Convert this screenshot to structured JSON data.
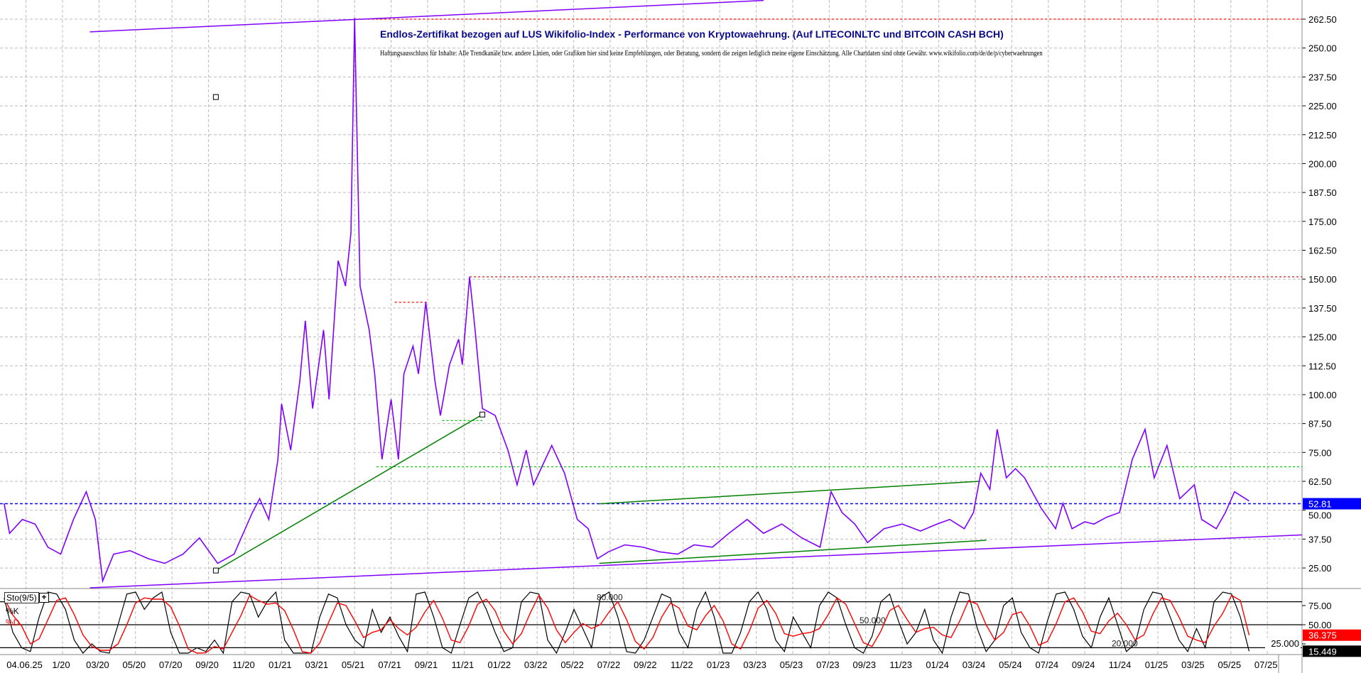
{
  "chart_data": {
    "type": "line",
    "title": "Endlos-Zertifikat bezogen auf LUS Wikifolio-Index - Performance von Kryptowaehrung. (Auf LITECOINLTC und BITCOIN CASH BCH)",
    "subtitle": "Haftungsausschluss für Inhalte: Alle Trendkanäle bzw. andere Linien, oder Grafiken hier sind keine Empfehlungen, oder Beratung, sondern die zeigen lediglich meine eigene Einschätzung. Alle Chartdaten sind ohne Gewähr. www.wikifolio.com/de/de/p/cyberwaehrungen",
    "x_unit": "months since 01/2020",
    "x_tick_labels": [
      "04.06.25",
      "1/20",
      "03/20",
      "05/20",
      "07/20",
      "09/20",
      "11/20",
      "01/21",
      "03/21",
      "05/21",
      "07/21",
      "09/21",
      "11/21",
      "01/22",
      "03/22",
      "05/22",
      "07/22",
      "09/22",
      "11/22",
      "01/23",
      "03/23",
      "05/23",
      "07/23",
      "09/23",
      "11/23",
      "01/24",
      "03/24",
      "05/24",
      "07/24",
      "09/24",
      "11/24",
      "01/25",
      "03/25",
      "05/25",
      "07/25"
    ],
    "x_tick_months": [
      -2,
      0,
      2,
      4,
      6,
      8,
      10,
      12,
      14,
      16,
      18,
      20,
      22,
      24,
      26,
      28,
      30,
      32,
      34,
      36,
      38,
      40,
      42,
      44,
      46,
      48,
      50,
      52,
      54,
      56,
      58,
      60,
      62,
      64,
      66
    ],
    "y_ticks": [
      "25.00",
      "37.50",
      "50.00",
      "62.50",
      "75.00",
      "87.50",
      "100.00",
      "112.50",
      "125.00",
      "137.50",
      "150.00",
      "162.50",
      "175.00",
      "187.50",
      "200.00",
      "212.50",
      "225.00",
      "237.50",
      "250.00",
      "262.50"
    ],
    "ylim": [
      17,
      265
    ],
    "grid": true,
    "series": [
      {
        "name": "Price",
        "color": "#8000ff",
        "points": [
          [
            -3.2,
            53
          ],
          [
            -2.9,
            40
          ],
          [
            -2.2,
            46
          ],
          [
            -1.5,
            44
          ],
          [
            -0.8,
            34
          ],
          [
            -0.1,
            31
          ],
          [
            0.6,
            46
          ],
          [
            1.3,
            58
          ],
          [
            1.8,
            46
          ],
          [
            2.2,
            19.4
          ],
          [
            2.8,
            31
          ],
          [
            3.7,
            32.5
          ],
          [
            4.7,
            29
          ],
          [
            5.6,
            27
          ],
          [
            6.6,
            31
          ],
          [
            7.5,
            38
          ],
          [
            8.5,
            27
          ],
          [
            9.4,
            31
          ],
          [
            10.4,
            49
          ],
          [
            10.8,
            55
          ],
          [
            11.3,
            46
          ],
          [
            11.8,
            72
          ],
          [
            12.0,
            96
          ],
          [
            12.5,
            76
          ],
          [
            13.0,
            106
          ],
          [
            13.3,
            132
          ],
          [
            13.7,
            94
          ],
          [
            14.3,
            128
          ],
          [
            14.6,
            98
          ],
          [
            15.1,
            158
          ],
          [
            15.5,
            147
          ],
          [
            15.8,
            170
          ],
          [
            16.0,
            263
          ],
          [
            16.3,
            147
          ],
          [
            16.8,
            128
          ],
          [
            17.1,
            109
          ],
          [
            17.5,
            72
          ],
          [
            18.0,
            98
          ],
          [
            18.4,
            72
          ],
          [
            18.7,
            109
          ],
          [
            19.2,
            121
          ],
          [
            19.5,
            109
          ],
          [
            19.9,
            140
          ],
          [
            20.4,
            106
          ],
          [
            20.7,
            91
          ],
          [
            21.2,
            113
          ],
          [
            21.7,
            124
          ],
          [
            21.9,
            113
          ],
          [
            22.3,
            151
          ],
          [
            22.6,
            128
          ],
          [
            23.0,
            94
          ],
          [
            23.7,
            91
          ],
          [
            24.4,
            76
          ],
          [
            24.9,
            61
          ],
          [
            25.4,
            76
          ],
          [
            25.8,
            61
          ],
          [
            26.8,
            78
          ],
          [
            27.5,
            66
          ],
          [
            28.2,
            46
          ],
          [
            28.8,
            42
          ],
          [
            29.3,
            29
          ],
          [
            29.9,
            32
          ],
          [
            30.8,
            35
          ],
          [
            31.8,
            34
          ],
          [
            32.7,
            32
          ],
          [
            33.7,
            31
          ],
          [
            34.6,
            35
          ],
          [
            35.6,
            34
          ],
          [
            36.5,
            40
          ],
          [
            37.5,
            46
          ],
          [
            38.4,
            40
          ],
          [
            39.4,
            44
          ],
          [
            40.5,
            38
          ],
          [
            41.5,
            34
          ],
          [
            42.1,
            58
          ],
          [
            42.7,
            49
          ],
          [
            43.4,
            44
          ],
          [
            44.1,
            36
          ],
          [
            45.0,
            42
          ],
          [
            46.0,
            44
          ],
          [
            47.0,
            41
          ],
          [
            47.9,
            44
          ],
          [
            48.6,
            46
          ],
          [
            49.4,
            42
          ],
          [
            49.9,
            49
          ],
          [
            50.3,
            66
          ],
          [
            50.8,
            59
          ],
          [
            51.2,
            85
          ],
          [
            51.7,
            64
          ],
          [
            52.2,
            68
          ],
          [
            52.7,
            64
          ],
          [
            53.6,
            51
          ],
          [
            54.4,
            42
          ],
          [
            54.8,
            53
          ],
          [
            55.3,
            42
          ],
          [
            56.0,
            45
          ],
          [
            56.5,
            44
          ],
          [
            57.2,
            47
          ],
          [
            57.9,
            49
          ],
          [
            58.6,
            72
          ],
          [
            59.3,
            85
          ],
          [
            59.8,
            64
          ],
          [
            60.5,
            78
          ],
          [
            61.2,
            55
          ],
          [
            62.0,
            61
          ],
          [
            62.4,
            46
          ],
          [
            63.2,
            42
          ],
          [
            63.7,
            49
          ],
          [
            64.2,
            58
          ],
          [
            64.6,
            56
          ],
          [
            65.0,
            54
          ]
        ]
      }
    ],
    "current_price": {
      "value": 52.81,
      "label": "52.81",
      "color": "#0000ff"
    },
    "trendlines": [
      {
        "name": "upper-channel",
        "color": "#8000ff",
        "from": [
          1.5,
          257
        ],
        "to": [
          38.4,
          270.6
        ]
      },
      {
        "name": "lower-channel",
        "color": "#8000ff",
        "from": [
          1.5,
          16.4
        ],
        "to": [
          67.9,
          39.3
        ]
      },
      {
        "name": "support-2020-2021",
        "color": "#008000",
        "from": [
          8.4,
          23.9
        ],
        "to": [
          23.0,
          91.4
        ]
      },
      {
        "name": "channel-2022-2024-top",
        "color": "#008000",
        "from": [
          29.4,
          52.8
        ],
        "to": [
          50.2,
          62.5
        ]
      },
      {
        "name": "channel-2022-2024-bottom",
        "color": "#008000",
        "from": [
          29.4,
          27
        ],
        "to": [
          50.6,
          37
        ]
      }
    ],
    "horizontal_levels": [
      {
        "name": "ath-level",
        "value": 262.5,
        "from": 16.0,
        "color": "#ff0000"
      },
      {
        "name": "level-151",
        "value": 151,
        "from": 22.3,
        "color": "#c00000"
      },
      {
        "name": "level-140",
        "value": 140,
        "from": 18.2,
        "to": 20.0,
        "color": "#ff0000"
      },
      {
        "name": "level-69",
        "value": 68.8,
        "from": 17.2,
        "color": "#00cc00"
      },
      {
        "name": "level-89",
        "value": 88.8,
        "from": 20.8,
        "to": 23.0,
        "color": "#00cc00"
      }
    ],
    "markers": [
      [
        8.4,
        228.8
      ],
      [
        8.4,
        23.9
      ],
      [
        23.0,
        91.4
      ]
    ],
    "oscillator": {
      "name": "Sto(9/5)",
      "k_label": "%K",
      "d_label": "%D",
      "k_color": "#000000",
      "d_color": "#ff0000",
      "levels": [
        80,
        50,
        20
      ],
      "level_labels": [
        "80.000",
        "50.000",
        "20.000"
      ],
      "axis_labels": [
        "75.00",
        "50.00",
        "25.000"
      ],
      "k_current": "15.449",
      "d_current": "36.375",
      "k_values": [
        85,
        40,
        20,
        15,
        60,
        95,
        90,
        70,
        30,
        10,
        25,
        15,
        10,
        50,
        90,
        95,
        70,
        85,
        95,
        40,
        10,
        5,
        20,
        15,
        30,
        10,
        80,
        95,
        90,
        60,
        80,
        95,
        30,
        5,
        10,
        8,
        60,
        90,
        85,
        50,
        30,
        20,
        70,
        40,
        60,
        35,
        15,
        90,
        95,
        60,
        20,
        10,
        50,
        85,
        95,
        70,
        40,
        15,
        20,
        80,
        95,
        90,
        30,
        10,
        40,
        70,
        45,
        20,
        85,
        95,
        60,
        15,
        10,
        30,
        60,
        90,
        85,
        40,
        20,
        70,
        95,
        60,
        10,
        5,
        40,
        80,
        95,
        70,
        30,
        15,
        60,
        40,
        20,
        75,
        95,
        85,
        50,
        20,
        10,
        35,
        80,
        90,
        55,
        25,
        40,
        70,
        30,
        10,
        60,
        95,
        90,
        45,
        15,
        30,
        75,
        85,
        40,
        20,
        10,
        55,
        90,
        95,
        70,
        35,
        20,
        60,
        85,
        50,
        15,
        25,
        70,
        95,
        90,
        60,
        30,
        15,
        45,
        20,
        80,
        95,
        90,
        60,
        15.449
      ]
    }
  }
}
